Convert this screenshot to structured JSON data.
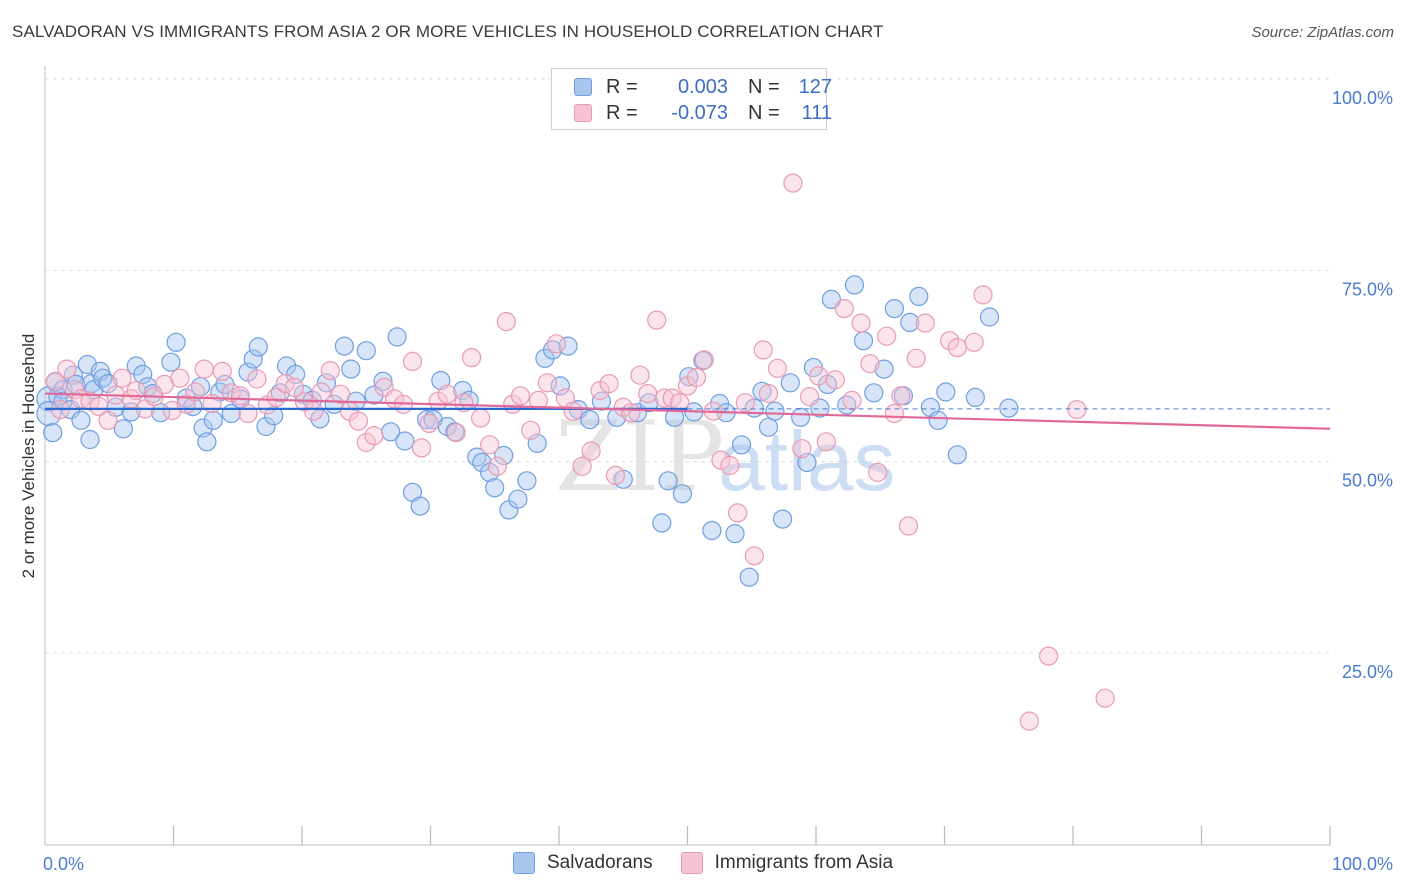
{
  "title": "SALVADORAN VS IMMIGRANTS FROM ASIA 2 OR MORE VEHICLES IN HOUSEHOLD CORRELATION CHART",
  "source": "Source: ZipAtlas.com",
  "watermark": {
    "zip": "ZIP",
    "atlas": "atlas"
  },
  "legend": {
    "r_label": "R =",
    "n_label": "N =",
    "rows": [
      {
        "r": "0.003",
        "n": "127"
      },
      {
        "r": "-0.073",
        "n": "111"
      }
    ]
  },
  "chart_data": {
    "type": "scatter",
    "title": "SALVADORAN VS IMMIGRANTS FROM ASIA 2 OR MORE VEHICLES IN HOUSEHOLD CORRELATION CHART",
    "xlabel": "",
    "ylabel": "2 or more Vehicles in Household",
    "x_tick_labels": [
      "0.0%",
      "100.0%"
    ],
    "y_tick_labels": [
      "100.0%",
      "75.0%",
      "50.0%",
      "25.0%"
    ],
    "xlim": [
      0,
      100
    ],
    "ylim": [
      2,
      104
    ],
    "grid": true,
    "legend_position": "top-center",
    "series": [
      {
        "name": "Salvadorans",
        "color": "#6f9fe0",
        "fill": "#a9c6ef",
        "trend_color": "#2b6bd1",
        "trend": [
          [
            0,
            56.9
          ],
          [
            50,
            56.9
          ]
        ],
        "points": [
          [
            0.3,
            58.2
          ],
          [
            0.3,
            56.3
          ],
          [
            0.6,
            53.8
          ],
          [
            0.8,
            60.4
          ],
          [
            1.0,
            58.5
          ],
          [
            1.4,
            59.4
          ],
          [
            1.4,
            57.9
          ],
          [
            2.0,
            56.8
          ],
          [
            2.2,
            61.3
          ],
          [
            2.4,
            60.1
          ],
          [
            2.8,
            55.4
          ],
          [
            3.3,
            62.7
          ],
          [
            3.5,
            52.9
          ],
          [
            3.6,
            60.2
          ],
          [
            3.8,
            59.4
          ],
          [
            4.3,
            61.8
          ],
          [
            4.5,
            60.9
          ],
          [
            4.9,
            60.2
          ],
          [
            5.5,
            57.1
          ],
          [
            6.1,
            54.3
          ],
          [
            6.7,
            56.5
          ],
          [
            7.1,
            62.5
          ],
          [
            7.6,
            61.4
          ],
          [
            8.0,
            59.8
          ],
          [
            8.4,
            58.9
          ],
          [
            9.0,
            56.4
          ],
          [
            9.8,
            63.0
          ],
          [
            10.2,
            65.6
          ],
          [
            11.0,
            58.3
          ],
          [
            11.5,
            57.2
          ],
          [
            12.1,
            59.8
          ],
          [
            12.3,
            54.4
          ],
          [
            12.6,
            52.6
          ],
          [
            13.1,
            55.4
          ],
          [
            13.6,
            59.1
          ],
          [
            14.0,
            60.1
          ],
          [
            14.5,
            56.3
          ],
          [
            15.2,
            58.2
          ],
          [
            15.8,
            61.7
          ],
          [
            16.2,
            63.4
          ],
          [
            16.6,
            65.0
          ],
          [
            17.2,
            54.6
          ],
          [
            17.8,
            56.0
          ],
          [
            18.3,
            59.0
          ],
          [
            18.8,
            62.5
          ],
          [
            19.5,
            61.4
          ],
          [
            20.1,
            58.8
          ],
          [
            20.8,
            58.0
          ],
          [
            21.4,
            55.6
          ],
          [
            21.9,
            60.3
          ],
          [
            22.5,
            57.5
          ],
          [
            23.3,
            65.1
          ],
          [
            23.8,
            62.1
          ],
          [
            24.2,
            57.9
          ],
          [
            25.0,
            64.5
          ],
          [
            25.6,
            58.7
          ],
          [
            26.3,
            60.5
          ],
          [
            26.9,
            53.9
          ],
          [
            27.4,
            66.3
          ],
          [
            28.0,
            52.7
          ],
          [
            28.6,
            46.0
          ],
          [
            29.2,
            44.2
          ],
          [
            29.7,
            55.5
          ],
          [
            30.2,
            55.5
          ],
          [
            30.8,
            60.6
          ],
          [
            31.3,
            54.6
          ],
          [
            31.9,
            53.9
          ],
          [
            32.5,
            59.3
          ],
          [
            33.0,
            58.0
          ],
          [
            33.6,
            50.6
          ],
          [
            34.0,
            49.9
          ],
          [
            34.6,
            48.6
          ],
          [
            35.0,
            46.6
          ],
          [
            35.7,
            50.8
          ],
          [
            36.1,
            43.7
          ],
          [
            36.8,
            45.1
          ],
          [
            37.5,
            47.5
          ],
          [
            38.3,
            52.4
          ],
          [
            38.9,
            63.5
          ],
          [
            39.5,
            64.6
          ],
          [
            40.1,
            59.9
          ],
          [
            40.7,
            65.1
          ],
          [
            41.5,
            56.8
          ],
          [
            42.4,
            55.5
          ],
          [
            43.3,
            57.9
          ],
          [
            44.5,
            55.8
          ],
          [
            45.0,
            47.7
          ],
          [
            46.1,
            56.4
          ],
          [
            47.0,
            57.7
          ],
          [
            48.0,
            42.0
          ],
          [
            48.5,
            47.5
          ],
          [
            49.0,
            55.8
          ],
          [
            49.6,
            45.8
          ],
          [
            50.1,
            61.1
          ],
          [
            50.5,
            56.5
          ],
          [
            51.2,
            63.2
          ],
          [
            51.9,
            41.0
          ],
          [
            52.5,
            57.6
          ],
          [
            53.0,
            56.4
          ],
          [
            53.7,
            40.6
          ],
          [
            54.2,
            52.2
          ],
          [
            54.8,
            34.9
          ],
          [
            55.2,
            57.0
          ],
          [
            55.8,
            59.2
          ],
          [
            56.3,
            54.5
          ],
          [
            56.8,
            56.6
          ],
          [
            57.4,
            42.5
          ],
          [
            58.0,
            60.3
          ],
          [
            58.8,
            55.8
          ],
          [
            59.3,
            49.9
          ],
          [
            59.8,
            62.3
          ],
          [
            60.3,
            57.0
          ],
          [
            60.9,
            60.1
          ],
          [
            61.2,
            71.2
          ],
          [
            62.4,
            57.4
          ],
          [
            63.0,
            73.1
          ],
          [
            63.7,
            65.8
          ],
          [
            64.5,
            59.0
          ],
          [
            65.3,
            62.1
          ],
          [
            66.1,
            70.0
          ],
          [
            66.8,
            58.6
          ],
          [
            67.3,
            68.2
          ],
          [
            68.0,
            71.6
          ],
          [
            68.9,
            57.1
          ],
          [
            69.5,
            55.4
          ],
          [
            70.1,
            59.1
          ],
          [
            71.0,
            50.9
          ],
          [
            72.4,
            58.4
          ],
          [
            73.5,
            68.9
          ],
          [
            75.0,
            57.0
          ]
        ]
      },
      {
        "name": "Immigrants from Asia",
        "color": "#e89bb5",
        "fill": "#f7c3d3",
        "trend_color": "#e0699a",
        "trend": [
          [
            0,
            58.9
          ],
          [
            100,
            54.3
          ]
        ],
        "points": [
          [
            0.8,
            60.5
          ],
          [
            1.2,
            56.8
          ],
          [
            1.7,
            62.1
          ],
          [
            2.3,
            59.4
          ],
          [
            2.8,
            58.2
          ],
          [
            3.5,
            57.9
          ],
          [
            4.2,
            57.2
          ],
          [
            4.9,
            55.4
          ],
          [
            5.5,
            58.7
          ],
          [
            6.0,
            60.9
          ],
          [
            6.7,
            58.2
          ],
          [
            7.1,
            59.3
          ],
          [
            7.8,
            56.9
          ],
          [
            8.5,
            58.5
          ],
          [
            9.3,
            60.1
          ],
          [
            9.9,
            56.7
          ],
          [
            10.5,
            60.9
          ],
          [
            11.0,
            57.5
          ],
          [
            11.7,
            59.1
          ],
          [
            12.4,
            62.1
          ],
          [
            13.0,
            57.6
          ],
          [
            13.8,
            61.8
          ],
          [
            14.5,
            59.0
          ],
          [
            15.2,
            58.6
          ],
          [
            15.8,
            56.3
          ],
          [
            16.5,
            60.8
          ],
          [
            17.3,
            57.4
          ],
          [
            18.0,
            58.4
          ],
          [
            18.7,
            60.2
          ],
          [
            19.4,
            59.7
          ],
          [
            20.2,
            57.8
          ],
          [
            20.9,
            56.6
          ],
          [
            21.5,
            59.1
          ],
          [
            22.2,
            61.9
          ],
          [
            23.0,
            58.8
          ],
          [
            23.7,
            56.6
          ],
          [
            24.4,
            55.3
          ],
          [
            25.0,
            52.5
          ],
          [
            25.6,
            53.4
          ],
          [
            26.4,
            59.7
          ],
          [
            27.2,
            58.2
          ],
          [
            27.9,
            57.5
          ],
          [
            28.6,
            63.1
          ],
          [
            29.3,
            51.8
          ],
          [
            29.9,
            55.0
          ],
          [
            30.6,
            57.9
          ],
          [
            31.3,
            58.8
          ],
          [
            32.0,
            53.8
          ],
          [
            32.6,
            57.7
          ],
          [
            33.2,
            63.6
          ],
          [
            33.9,
            55.7
          ],
          [
            34.6,
            52.2
          ],
          [
            35.2,
            49.4
          ],
          [
            35.9,
            68.3
          ],
          [
            36.4,
            57.5
          ],
          [
            37.0,
            58.6
          ],
          [
            37.8,
            54.1
          ],
          [
            38.4,
            58.0
          ],
          [
            39.1,
            60.3
          ],
          [
            39.8,
            65.4
          ],
          [
            40.5,
            58.3
          ],
          [
            41.1,
            56.6
          ],
          [
            41.8,
            49.4
          ],
          [
            42.5,
            51.4
          ],
          [
            43.2,
            59.3
          ],
          [
            43.9,
            60.2
          ],
          [
            44.4,
            48.2
          ],
          [
            45.0,
            57.1
          ],
          [
            45.6,
            56.4
          ],
          [
            46.3,
            61.3
          ],
          [
            46.9,
            58.9
          ],
          [
            47.6,
            68.5
          ],
          [
            48.2,
            58.3
          ],
          [
            48.8,
            58.3
          ],
          [
            49.4,
            57.7
          ],
          [
            50.0,
            59.9
          ],
          [
            50.7,
            61.0
          ],
          [
            51.3,
            63.3
          ],
          [
            52.0,
            56.6
          ],
          [
            52.6,
            50.2
          ],
          [
            53.3,
            49.5
          ],
          [
            53.9,
            43.3
          ],
          [
            54.5,
            57.7
          ],
          [
            55.2,
            37.7
          ],
          [
            55.9,
            64.6
          ],
          [
            56.3,
            58.9
          ],
          [
            57.0,
            62.2
          ],
          [
            57.6,
            100.0
          ],
          [
            58.2,
            86.4
          ],
          [
            58.9,
            51.7
          ],
          [
            59.5,
            58.5
          ],
          [
            60.2,
            61.2
          ],
          [
            60.8,
            52.6
          ],
          [
            61.5,
            60.7
          ],
          [
            62.2,
            70.0
          ],
          [
            62.8,
            58.0
          ],
          [
            63.5,
            68.1
          ],
          [
            64.2,
            62.8
          ],
          [
            64.8,
            48.6
          ],
          [
            65.5,
            66.4
          ],
          [
            66.1,
            56.3
          ],
          [
            66.6,
            58.6
          ],
          [
            67.2,
            41.6
          ],
          [
            67.8,
            63.5
          ],
          [
            68.5,
            68.1
          ],
          [
            70.4,
            65.8
          ],
          [
            71.0,
            64.9
          ],
          [
            72.3,
            65.6
          ],
          [
            73.0,
            71.8
          ],
          [
            76.6,
            16.1
          ],
          [
            78.1,
            24.6
          ],
          [
            80.3,
            56.8
          ],
          [
            82.5,
            19.1
          ]
        ]
      }
    ]
  }
}
